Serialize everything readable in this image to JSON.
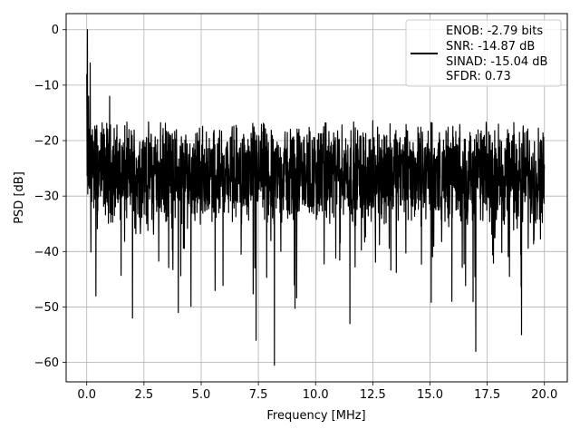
{
  "chart_data": {
    "type": "line",
    "title": "",
    "xlabel": "Frequency [MHz]",
    "ylabel": "PSD [dB]",
    "xlim": [
      -0.9,
      21.0
    ],
    "ylim": [
      -63.5,
      2.9
    ],
    "xticks": [
      0.0,
      2.5,
      5.0,
      7.5,
      10.0,
      12.5,
      15.0,
      17.5,
      20.0
    ],
    "xtick_labels": [
      "0.0",
      "2.5",
      "5.0",
      "7.5",
      "10.0",
      "12.5",
      "15.0",
      "17.5",
      "20.0"
    ],
    "yticks": [
      0,
      -10,
      -20,
      -30,
      -40,
      -50,
      -60
    ],
    "ytick_labels": [
      "0",
      "−10",
      "−20",
      "−30",
      "−40",
      "−50",
      "−60"
    ],
    "grid": true,
    "legend_position": "top-right",
    "line_color": "#000000",
    "series": [
      {
        "name": "",
        "description": "noise-like PSD trace, peak 0 dB near 0 MHz, mostly between -35 and -15 dB",
        "key_points": {
          "x": [
            0.0,
            0.03,
            0.08,
            0.15,
            0.25,
            0.4,
            0.6,
            1.0,
            2.0,
            4.0,
            7.4,
            8.2,
            11.5,
            13.0,
            15.0,
            17.0,
            19.0,
            20.0
          ],
          "y": [
            -8,
            0,
            -12,
            -6,
            -18,
            -48,
            -30,
            -12,
            -52,
            -51,
            -56,
            -60.5,
            -53,
            -35,
            -28,
            -58,
            -55,
            -25
          ]
        },
        "min": -60.5,
        "max": 0
      }
    ],
    "legend_entries": [
      "ENOB: -2.79 bits",
      "SNR: -14.87 dB",
      "SINAD: -15.04 dB",
      "SFDR: 0.73"
    ]
  }
}
